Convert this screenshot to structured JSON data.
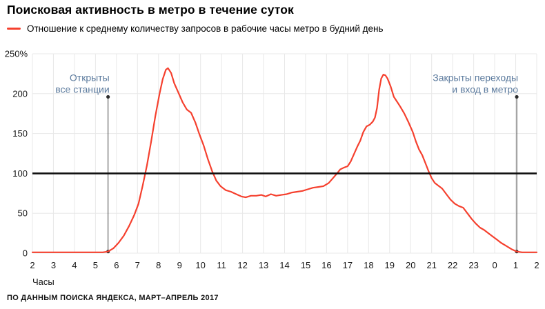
{
  "header": {
    "title": "Поисковая активность в метро в течение суток",
    "legend": {
      "swatch_color": "#f5402e",
      "label": "Отношение к среднему количеству запросов в рабочие часы метро в будний день"
    }
  },
  "chart_data": {
    "type": "line",
    "title": "Поисковая активность в метро в течение суток",
    "xlabel": "Часы",
    "ylabel": "",
    "xlim": [
      2,
      26
    ],
    "ylim": [
      0,
      250
    ],
    "grid": true,
    "grid_color": "#e8e8e8",
    "x_tick_labels": [
      "2",
      "3",
      "4",
      "5",
      "6",
      "7",
      "8",
      "9",
      "10",
      "11",
      "12",
      "13",
      "14",
      "15",
      "16",
      "17",
      "18",
      "19",
      "20",
      "21",
      "22",
      "23",
      "0",
      "1",
      "2"
    ],
    "y_ticks": [
      {
        "v": 0,
        "label": "0"
      },
      {
        "v": 50,
        "label": "50"
      },
      {
        "v": 100,
        "label": "100"
      },
      {
        "v": 150,
        "label": "150"
      },
      {
        "v": 200,
        "label": "200"
      },
      {
        "v": 250,
        "label": "250%"
      }
    ],
    "reference_line": {
      "value": 100,
      "color": "#101010"
    },
    "annotations": [
      {
        "hour": 5.6,
        "text_lines": [
          "Открыты",
          "все станции"
        ],
        "top_value": 196,
        "bottom_value": 2
      },
      {
        "hour": 25.05,
        "text_lines": [
          "Закрыты переходы",
          "и вход в метро"
        ],
        "top_value": 196,
        "bottom_value": 2
      }
    ],
    "series": [
      {
        "name": "Отношение к среднему количеству запросов в рабочие часы метро в будний день",
        "color": "#f5402e",
        "points": [
          [
            2,
            1
          ],
          [
            2.5,
            1
          ],
          [
            3,
            1
          ],
          [
            3.5,
            1
          ],
          [
            4,
            1
          ],
          [
            4.5,
            1
          ],
          [
            5,
            1
          ],
          [
            5.35,
            1
          ],
          [
            5.6,
            2
          ],
          [
            5.85,
            6
          ],
          [
            6.1,
            13
          ],
          [
            6.35,
            22
          ],
          [
            6.6,
            34
          ],
          [
            6.85,
            48
          ],
          [
            7.05,
            62
          ],
          [
            7.25,
            85
          ],
          [
            7.45,
            110
          ],
          [
            7.65,
            140
          ],
          [
            7.85,
            172
          ],
          [
            8.05,
            200
          ],
          [
            8.2,
            218
          ],
          [
            8.35,
            230
          ],
          [
            8.45,
            232
          ],
          [
            8.6,
            226
          ],
          [
            8.75,
            213
          ],
          [
            8.95,
            201
          ],
          [
            9.15,
            189
          ],
          [
            9.35,
            180
          ],
          [
            9.55,
            176
          ],
          [
            9.75,
            164
          ],
          [
            9.95,
            149
          ],
          [
            10.15,
            135
          ],
          [
            10.35,
            118
          ],
          [
            10.55,
            103
          ],
          [
            10.75,
            91
          ],
          [
            10.95,
            84
          ],
          [
            11.2,
            79
          ],
          [
            11.45,
            77
          ],
          [
            11.7,
            74
          ],
          [
            11.95,
            71
          ],
          [
            12.15,
            70
          ],
          [
            12.4,
            72
          ],
          [
            12.65,
            72
          ],
          [
            12.9,
            73
          ],
          [
            13.1,
            71
          ],
          [
            13.35,
            74
          ],
          [
            13.6,
            72
          ],
          [
            13.85,
            73
          ],
          [
            14.1,
            74
          ],
          [
            14.35,
            76
          ],
          [
            14.6,
            77
          ],
          [
            14.85,
            78
          ],
          [
            15.1,
            80
          ],
          [
            15.35,
            82
          ],
          [
            15.6,
            83
          ],
          [
            15.85,
            84
          ],
          [
            16.1,
            88
          ],
          [
            16.3,
            94
          ],
          [
            16.5,
            100
          ],
          [
            16.65,
            105
          ],
          [
            16.8,
            107
          ],
          [
            17,
            109
          ],
          [
            17.15,
            115
          ],
          [
            17.3,
            124
          ],
          [
            17.45,
            133
          ],
          [
            17.6,
            141
          ],
          [
            17.75,
            152
          ],
          [
            17.9,
            159
          ],
          [
            18.05,
            161
          ],
          [
            18.2,
            165
          ],
          [
            18.3,
            170
          ],
          [
            18.4,
            182
          ],
          [
            18.5,
            205
          ],
          [
            18.6,
            219
          ],
          [
            18.7,
            224
          ],
          [
            18.8,
            223
          ],
          [
            18.9,
            219
          ],
          [
            19.05,
            209
          ],
          [
            19.2,
            196
          ],
          [
            19.35,
            190
          ],
          [
            19.5,
            184
          ],
          [
            19.7,
            175
          ],
          [
            19.9,
            164
          ],
          [
            20.1,
            152
          ],
          [
            20.25,
            140
          ],
          [
            20.4,
            130
          ],
          [
            20.55,
            123
          ],
          [
            20.7,
            113
          ],
          [
            20.85,
            103
          ],
          [
            21,
            94
          ],
          [
            21.15,
            88
          ],
          [
            21.3,
            85
          ],
          [
            21.5,
            81
          ],
          [
            21.7,
            74
          ],
          [
            21.9,
            67
          ],
          [
            22.1,
            62
          ],
          [
            22.3,
            59
          ],
          [
            22.5,
            57
          ],
          [
            22.7,
            50
          ],
          [
            22.9,
            43
          ],
          [
            23.1,
            37
          ],
          [
            23.3,
            32
          ],
          [
            23.5,
            29
          ],
          [
            23.7,
            25
          ],
          [
            23.9,
            21
          ],
          [
            24.1,
            17
          ],
          [
            24.3,
            13
          ],
          [
            24.55,
            9
          ],
          [
            24.8,
            5
          ],
          [
            25.05,
            2
          ],
          [
            25.3,
            1
          ],
          [
            25.6,
            1
          ],
          [
            26,
            1
          ]
        ]
      }
    ]
  },
  "footer": {
    "source": "ПО ДАННЫМ ПОИСКА ЯНДЕКСА, МАРТ–АПРЕЛЬ 2017"
  }
}
